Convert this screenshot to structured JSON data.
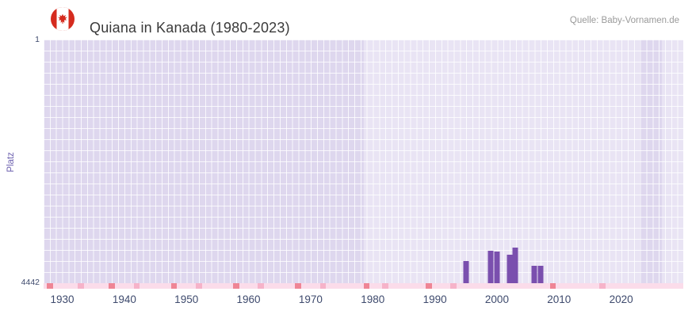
{
  "header": {
    "title": "Quiana in Kanada (1980-2023)",
    "source": "Quelle: Baby-Vornamen.de",
    "flag_icon": "canada-flag"
  },
  "chart_data": {
    "type": "bar",
    "title": "Quiana in Kanada (1980-2023)",
    "xlabel": "",
    "ylabel": "Platz",
    "grid": true,
    "legend": false,
    "y_axis": {
      "top_label": "1",
      "bottom_label": "4442",
      "min": 1,
      "max": 4442,
      "inverted": true
    },
    "x_axis": {
      "range": [
        1927,
        2030
      ],
      "ticks": [
        1930,
        1940,
        1950,
        1960,
        1970,
        1980,
        1990,
        2000,
        2010,
        2020
      ]
    },
    "bars": [
      {
        "year": 1995,
        "rank": 4040
      },
      {
        "year": 1999,
        "rank": 3850
      },
      {
        "year": 2000,
        "rank": 3865
      },
      {
        "year": 2002,
        "rank": 3920
      },
      {
        "year": 2003,
        "rank": 3790
      },
      {
        "year": 2006,
        "rank": 4125
      },
      {
        "year": 2007,
        "rank": 4125
      }
    ],
    "bar_color": "#7a4fae",
    "plot_bg": "#e9e4f4",
    "band_color": "#ded7ee",
    "bands": [
      {
        "from": 1927,
        "to": 1978.5
      },
      {
        "from": 2023,
        "to": 2026.5
      }
    ],
    "timeline_strip": {
      "base_color": "#fbdcea",
      "dark_color": "#ef8595",
      "medium_color": "#f6b3c9",
      "dark_years": [
        1928,
        1938,
        1948,
        1958,
        1968,
        1979,
        1989,
        2009
      ],
      "medium_years": [
        1933,
        1942,
        1952,
        1962,
        1972,
        1982,
        1993,
        2017
      ]
    }
  },
  "colors": {
    "title": "#3a3a3a",
    "source": "#9a9a9a",
    "axis_label": "#6b5fae",
    "tick_label": "#3e4a6d",
    "flag_red": "#d52b1e"
  }
}
